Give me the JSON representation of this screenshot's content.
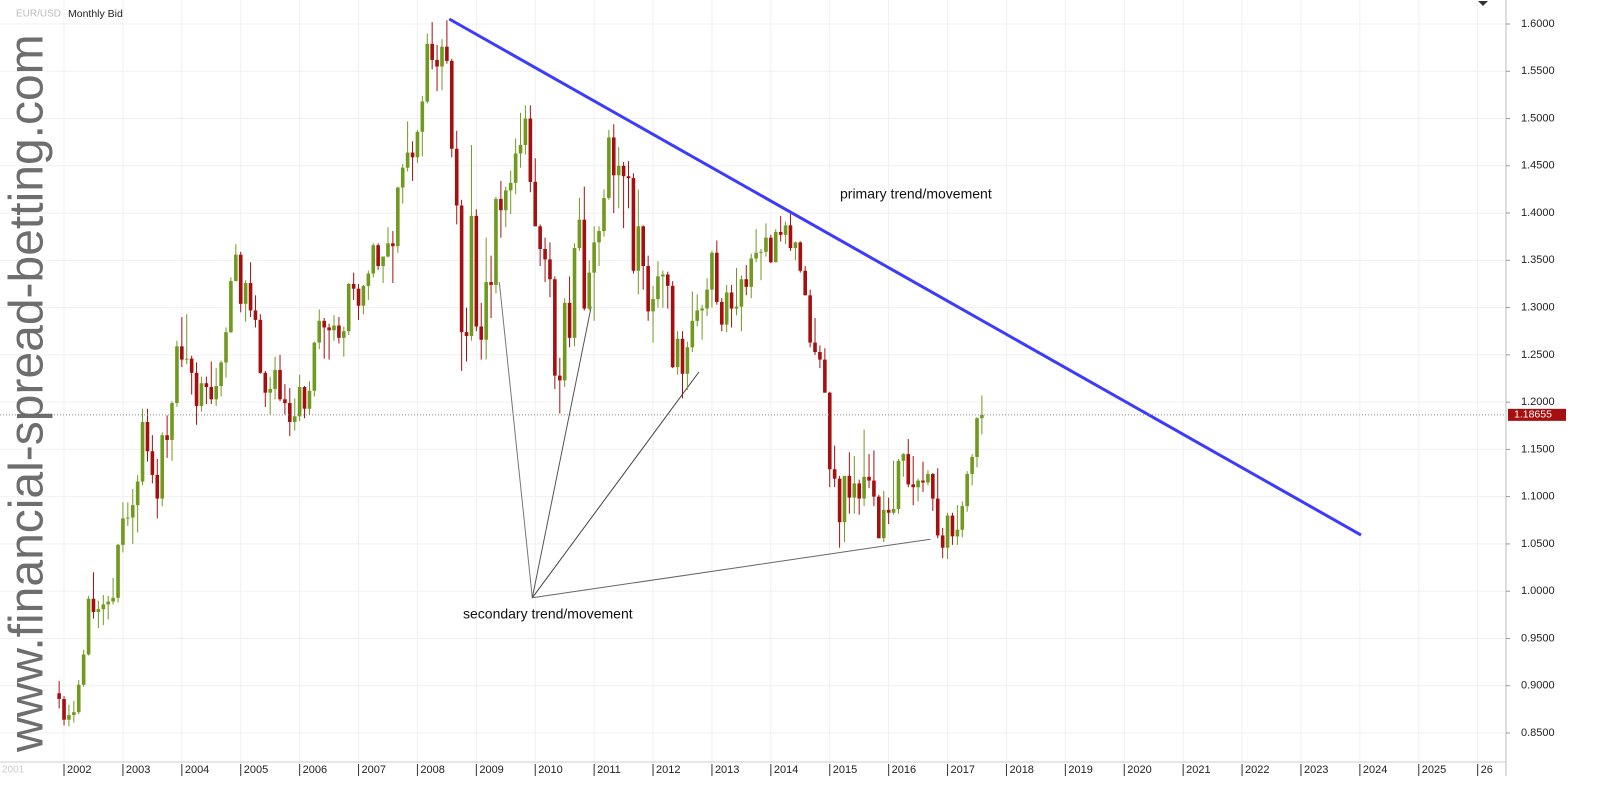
{
  "chart_data": {
    "type": "candlestick",
    "symbol": "EUR/USD",
    "title": "Monthly Bid",
    "navigator_label": "2001",
    "watermark": "www.financial-spread-betting.com",
    "annotations": [
      "primary trend/movement",
      "secondary trend/movement"
    ],
    "last_price": 1.18655,
    "up_color": "#6f9a1e",
    "down_color": "#a50f0f",
    "grid": true,
    "xlim": [
      2000.913,
      2026.481
    ],
    "ylim": [
      0.8193,
      1.6254
    ],
    "xticks": [
      2002,
      2003,
      2004,
      2005,
      2006,
      2007,
      2008,
      2009,
      2010,
      2011,
      2012,
      2013,
      2014,
      2015,
      2016,
      2017,
      2018,
      2019,
      2020,
      2021,
      2022,
      2023,
      2024,
      2025,
      {
        "value": 2026,
        "label": "26"
      }
    ],
    "yticks": [
      {
        "value": 0.85,
        "label": "0.8500"
      },
      {
        "value": 0.9,
        "label": "0.9000"
      },
      {
        "value": 0.95,
        "label": "0.9500"
      },
      {
        "value": 1.0,
        "label": "1.0000"
      },
      {
        "value": 1.05,
        "label": "1.0500"
      },
      {
        "value": 1.1,
        "label": "1.1000"
      },
      {
        "value": 1.15,
        "label": "1.1500"
      },
      {
        "value": 1.2,
        "label": "1.2000"
      },
      {
        "value": 1.25,
        "label": "1.2500"
      },
      {
        "value": 1.3,
        "label": "1.3000"
      },
      {
        "value": 1.35,
        "label": "1.3500"
      },
      {
        "value": 1.4,
        "label": "1.4000"
      },
      {
        "value": 1.45,
        "label": "1.4500"
      },
      {
        "value": 1.5,
        "label": "1.5000"
      },
      {
        "value": 1.55,
        "label": "1.5500"
      },
      {
        "value": 1.6,
        "label": "1.6000"
      }
    ],
    "trend_lines": [
      {
        "color": "#3b3bff",
        "x": [
          2008.54,
          2024.02
        ],
        "y": [
          1.6053,
          1.0594
        ]
      },
      {
        "color": "#777777",
        "x": [
          2009.95,
          2009.39
        ],
        "y": [
          0.993,
          1.327
        ]
      },
      {
        "color": "#555555",
        "x": [
          2009.95,
          2010.95
        ],
        "y": [
          0.993,
          1.301
        ]
      },
      {
        "color": "#444444",
        "x": [
          2009.95,
          2012.78
        ],
        "y": [
          0.993,
          1.232
        ]
      },
      {
        "color": "#666666",
        "x": [
          2009.95,
          2016.71
        ],
        "y": [
          0.993,
          1.055
        ]
      }
    ],
    "x": [
      2001.917,
      2002,
      2002.083,
      2002.167,
      2002.25,
      2002.333,
      2002.417,
      2002.5,
      2002.583,
      2002.667,
      2002.75,
      2002.833,
      2002.917,
      2003,
      2003.083,
      2003.167,
      2003.25,
      2003.333,
      2003.417,
      2003.5,
      2003.583,
      2003.667,
      2003.75,
      2003.833,
      2003.917,
      2004,
      2004.083,
      2004.167,
      2004.25,
      2004.333,
      2004.417,
      2004.5,
      2004.583,
      2004.667,
      2004.75,
      2004.833,
      2004.917,
      2005,
      2005.083,
      2005.167,
      2005.25,
      2005.333,
      2005.417,
      2005.5,
      2005.583,
      2005.667,
      2005.75,
      2005.833,
      2005.917,
      2006,
      2006.083,
      2006.167,
      2006.25,
      2006.333,
      2006.417,
      2006.5,
      2006.583,
      2006.667,
      2006.75,
      2006.833,
      2006.917,
      2007,
      2007.083,
      2007.167,
      2007.25,
      2007.333,
      2007.417,
      2007.5,
      2007.583,
      2007.667,
      2007.75,
      2007.833,
      2007.917,
      2008,
      2008.083,
      2008.167,
      2008.25,
      2008.333,
      2008.417,
      2008.5,
      2008.583,
      2008.667,
      2008.75,
      2008.833,
      2008.917,
      2009,
      2009.083,
      2009.167,
      2009.25,
      2009.333,
      2009.417,
      2009.5,
      2009.583,
      2009.667,
      2009.75,
      2009.833,
      2009.917,
      2010,
      2010.083,
      2010.167,
      2010.25,
      2010.333,
      2010.417,
      2010.5,
      2010.583,
      2010.667,
      2010.75,
      2010.833,
      2010.917,
      2011,
      2011.083,
      2011.167,
      2011.25,
      2011.333,
      2011.417,
      2011.5,
      2011.583,
      2011.667,
      2011.75,
      2011.833,
      2011.917,
      2012,
      2012.083,
      2012.167,
      2012.25,
      2012.333,
      2012.417,
      2012.5,
      2012.583,
      2012.667,
      2012.75,
      2012.833,
      2012.917,
      2013,
      2013.083,
      2013.167,
      2013.25,
      2013.333,
      2013.417,
      2013.5,
      2013.583,
      2013.667,
      2013.75,
      2013.833,
      2013.917,
      2014,
      2014.083,
      2014.167,
      2014.25,
      2014.333,
      2014.417,
      2014.5,
      2014.583,
      2014.667,
      2014.75,
      2014.833,
      2014.917,
      2015,
      2015.083,
      2015.167,
      2015.25,
      2015.333,
      2015.417,
      2015.5,
      2015.583,
      2015.667,
      2015.75,
      2015.833,
      2015.917,
      2016,
      2016.083,
      2016.167,
      2016.25,
      2016.333,
      2016.417,
      2016.5,
      2016.583,
      2016.667,
      2016.75,
      2016.833,
      2016.917,
      2017,
      2017.083,
      2017.167,
      2017.25,
      2017.333,
      2017.417,
      2017.5,
      2017.583
    ],
    "open": [
      0.892,
      0.886,
      0.864,
      0.869,
      0.872,
      0.901,
      0.933,
      0.992,
      0.978,
      0.981,
      0.986,
      0.989,
      0.993,
      1.049,
      1.077,
      1.078,
      1.091,
      1.116,
      1.179,
      1.148,
      1.123,
      1.098,
      1.165,
      1.16,
      1.199,
      1.259,
      1.245,
      1.246,
      1.231,
      1.196,
      1.22,
      1.216,
      1.203,
      1.217,
      1.242,
      1.274,
      1.328,
      1.356,
      1.304,
      1.326,
      1.297,
      1.287,
      1.231,
      1.21,
      1.214,
      1.234,
      1.203,
      1.199,
      1.179,
      1.185,
      1.216,
      1.193,
      1.212,
      1.263,
      1.286,
      1.279,
      1.276,
      1.281,
      1.268,
      1.275,
      1.325,
      1.32,
      1.302,
      1.323,
      1.336,
      1.366,
      1.344,
      1.354,
      1.368,
      1.365,
      1.427,
      1.448,
      1.464,
      1.459,
      1.486,
      1.518,
      1.579,
      1.562,
      1.555,
      1.576,
      1.561,
      1.468,
      1.408,
      1.274,
      1.27,
      1.397,
      1.28,
      1.266,
      1.327,
      1.324,
      1.415,
      1.403,
      1.424,
      1.432,
      1.463,
      1.472,
      1.5,
      1.433,
      1.386,
      1.362,
      1.351,
      1.33,
      1.228,
      1.223,
      1.305,
      1.268,
      1.363,
      1.393,
      1.299,
      1.337,
      1.369,
      1.381,
      1.416,
      1.48,
      1.44,
      1.45,
      1.439,
      1.437,
      1.339,
      1.386,
      1.344,
      1.296,
      1.309,
      1.333,
      1.335,
      1.323,
      1.237,
      1.267,
      1.23,
      1.258,
      1.286,
      1.297,
      1.299,
      1.319,
      1.358,
      1.306,
      1.282,
      1.316,
      1.299,
      1.301,
      1.33,
      1.322,
      1.352,
      1.358,
      1.359,
      1.374,
      1.348,
      1.38,
      1.377,
      1.387,
      1.363,
      1.369,
      1.339,
      1.313,
      1.263,
      1.253,
      1.245,
      1.21,
      1.129,
      1.119,
      1.073,
      1.122,
      1.099,
      1.114,
      1.098,
      1.121,
      1.117,
      1.1,
      1.056,
      1.086,
      1.083,
      1.087,
      1.138,
      1.145,
      1.113,
      1.11,
      1.117,
      1.115,
      1.124,
      1.098,
      1.059,
      1.046,
      1.08,
      1.058,
      1.065,
      1.09,
      1.124,
      1.142,
      1.183
    ],
    "high": [
      0.905,
      0.889,
      0.88,
      0.884,
      0.906,
      0.938,
      0.995,
      1.02,
      0.99,
      0.996,
      0.995,
      1.014,
      1.05,
      1.094,
      1.094,
      1.108,
      1.123,
      1.193,
      1.193,
      1.165,
      1.14,
      1.168,
      1.186,
      1.201,
      1.265,
      1.29,
      1.293,
      1.249,
      1.242,
      1.227,
      1.227,
      1.243,
      1.236,
      1.244,
      1.279,
      1.332,
      1.367,
      1.359,
      1.329,
      1.348,
      1.313,
      1.293,
      1.233,
      1.227,
      1.248,
      1.25,
      1.219,
      1.215,
      1.204,
      1.229,
      1.217,
      1.222,
      1.264,
      1.298,
      1.289,
      1.283,
      1.292,
      1.29,
      1.28,
      1.326,
      1.337,
      1.325,
      1.324,
      1.339,
      1.368,
      1.368,
      1.353,
      1.385,
      1.381,
      1.428,
      1.452,
      1.497,
      1.476,
      1.488,
      1.524,
      1.59,
      1.602,
      1.578,
      1.584,
      1.604,
      1.563,
      1.487,
      1.414,
      1.3,
      1.472,
      1.404,
      1.305,
      1.374,
      1.355,
      1.417,
      1.434,
      1.428,
      1.445,
      1.479,
      1.506,
      1.514,
      1.514,
      1.458,
      1.388,
      1.374,
      1.369,
      1.333,
      1.247,
      1.31,
      1.333,
      1.368,
      1.416,
      1.428,
      1.35,
      1.386,
      1.386,
      1.425,
      1.488,
      1.494,
      1.47,
      1.454,
      1.455,
      1.442,
      1.425,
      1.387,
      1.355,
      1.323,
      1.349,
      1.339,
      1.338,
      1.328,
      1.275,
      1.275,
      1.264,
      1.317,
      1.314,
      1.303,
      1.331,
      1.36,
      1.371,
      1.31,
      1.324,
      1.324,
      1.342,
      1.334,
      1.345,
      1.357,
      1.383,
      1.362,
      1.389,
      1.377,
      1.383,
      1.397,
      1.391,
      1.399,
      1.37,
      1.37,
      1.344,
      1.319,
      1.289,
      1.26,
      1.257,
      1.211,
      1.154,
      1.122,
      1.122,
      1.147,
      1.143,
      1.118,
      1.171,
      1.145,
      1.149,
      1.102,
      1.106,
      1.099,
      1.138,
      1.14,
      1.146,
      1.161,
      1.143,
      1.119,
      1.137,
      1.128,
      1.125,
      1.13,
      1.067,
      1.083,
      1.083,
      1.091,
      1.095,
      1.127,
      1.145,
      1.184,
      1.207
    ],
    "low": [
      0.876,
      0.858,
      0.857,
      0.861,
      0.87,
      0.899,
      0.932,
      0.971,
      0.961,
      0.964,
      0.97,
      0.986,
      0.988,
      1.041,
      1.069,
      1.05,
      1.062,
      1.112,
      1.137,
      1.114,
      1.077,
      1.09,
      1.141,
      1.138,
      1.195,
      1.237,
      1.24,
      1.208,
      1.176,
      1.19,
      1.198,
      1.198,
      1.196,
      1.206,
      1.226,
      1.273,
      1.328,
      1.295,
      1.285,
      1.29,
      1.279,
      1.23,
      1.195,
      1.187,
      1.203,
      1.201,
      1.187,
      1.164,
      1.17,
      1.18,
      1.183,
      1.187,
      1.206,
      1.256,
      1.246,
      1.245,
      1.265,
      1.262,
      1.248,
      1.271,
      1.308,
      1.287,
      1.293,
      1.308,
      1.332,
      1.34,
      1.326,
      1.353,
      1.326,
      1.358,
      1.41,
      1.444,
      1.434,
      1.453,
      1.46,
      1.516,
      1.552,
      1.529,
      1.53,
      1.558,
      1.459,
      1.388,
      1.233,
      1.243,
      1.265,
      1.275,
      1.245,
      1.245,
      1.289,
      1.315,
      1.374,
      1.385,
      1.399,
      1.42,
      1.448,
      1.462,
      1.422,
      1.386,
      1.344,
      1.327,
      1.311,
      1.214,
      1.188,
      1.216,
      1.258,
      1.259,
      1.36,
      1.297,
      1.297,
      1.286,
      1.344,
      1.375,
      1.414,
      1.4,
      1.405,
      1.384,
      1.405,
      1.336,
      1.314,
      1.319,
      1.286,
      1.263,
      1.3,
      1.3,
      1.299,
      1.236,
      1.229,
      1.204,
      1.213,
      1.253,
      1.28,
      1.266,
      1.291,
      1.3,
      1.303,
      1.275,
      1.274,
      1.279,
      1.292,
      1.275,
      1.313,
      1.31,
      1.348,
      1.329,
      1.354,
      1.347,
      1.348,
      1.37,
      1.367,
      1.36,
      1.35,
      1.337,
      1.313,
      1.258,
      1.25,
      1.236,
      1.21,
      1.11,
      1.11,
      1.046,
      1.052,
      1.082,
      1.082,
      1.081,
      1.09,
      1.109,
      1.09,
      1.056,
      1.052,
      1.071,
      1.081,
      1.082,
      1.121,
      1.11,
      1.091,
      1.095,
      1.105,
      1.112,
      1.085,
      1.056,
      1.035,
      1.034,
      1.049,
      1.049,
      1.057,
      1.084,
      1.112,
      1.131,
      1.166
    ],
    "close": [
      0.886,
      0.864,
      0.869,
      0.872,
      0.901,
      0.933,
      0.992,
      0.978,
      0.981,
      0.986,
      0.989,
      0.993,
      1.049,
      1.077,
      1.078,
      1.091,
      1.116,
      1.179,
      1.148,
      1.123,
      1.098,
      1.165,
      1.16,
      1.199,
      1.259,
      1.245,
      1.246,
      1.231,
      1.196,
      1.22,
      1.216,
      1.203,
      1.217,
      1.242,
      1.274,
      1.328,
      1.356,
      1.304,
      1.326,
      1.297,
      1.287,
      1.231,
      1.21,
      1.214,
      1.234,
      1.203,
      1.199,
      1.179,
      1.185,
      1.216,
      1.193,
      1.212,
      1.263,
      1.286,
      1.279,
      1.276,
      1.281,
      1.268,
      1.275,
      1.325,
      1.32,
      1.302,
      1.323,
      1.336,
      1.366,
      1.344,
      1.354,
      1.368,
      1.365,
      1.427,
      1.448,
      1.464,
      1.459,
      1.486,
      1.518,
      1.579,
      1.562,
      1.555,
      1.576,
      1.561,
      1.468,
      1.408,
      1.274,
      1.27,
      1.397,
      1.28,
      1.266,
      1.327,
      1.324,
      1.415,
      1.403,
      1.424,
      1.432,
      1.463,
      1.472,
      1.5,
      1.433,
      1.386,
      1.362,
      1.351,
      1.33,
      1.228,
      1.223,
      1.305,
      1.268,
      1.363,
      1.393,
      1.299,
      1.337,
      1.369,
      1.381,
      1.416,
      1.48,
      1.44,
      1.45,
      1.439,
      1.437,
      1.339,
      1.386,
      1.344,
      1.296,
      1.309,
      1.333,
      1.335,
      1.323,
      1.237,
      1.267,
      1.23,
      1.258,
      1.286,
      1.297,
      1.299,
      1.319,
      1.358,
      1.306,
      1.282,
      1.316,
      1.299,
      1.301,
      1.33,
      1.322,
      1.352,
      1.358,
      1.359,
      1.374,
      1.348,
      1.38,
      1.377,
      1.387,
      1.363,
      1.369,
      1.339,
      1.313,
      1.263,
      1.253,
      1.245,
      1.21,
      1.129,
      1.119,
      1.073,
      1.122,
      1.099,
      1.114,
      1.098,
      1.121,
      1.117,
      1.1,
      1.056,
      1.086,
      1.083,
      1.087,
      1.138,
      1.145,
      1.113,
      1.11,
      1.117,
      1.115,
      1.124,
      1.098,
      1.059,
      1.046,
      1.08,
      1.058,
      1.065,
      1.09,
      1.124,
      1.142,
      1.183,
      1.18655
    ]
  }
}
